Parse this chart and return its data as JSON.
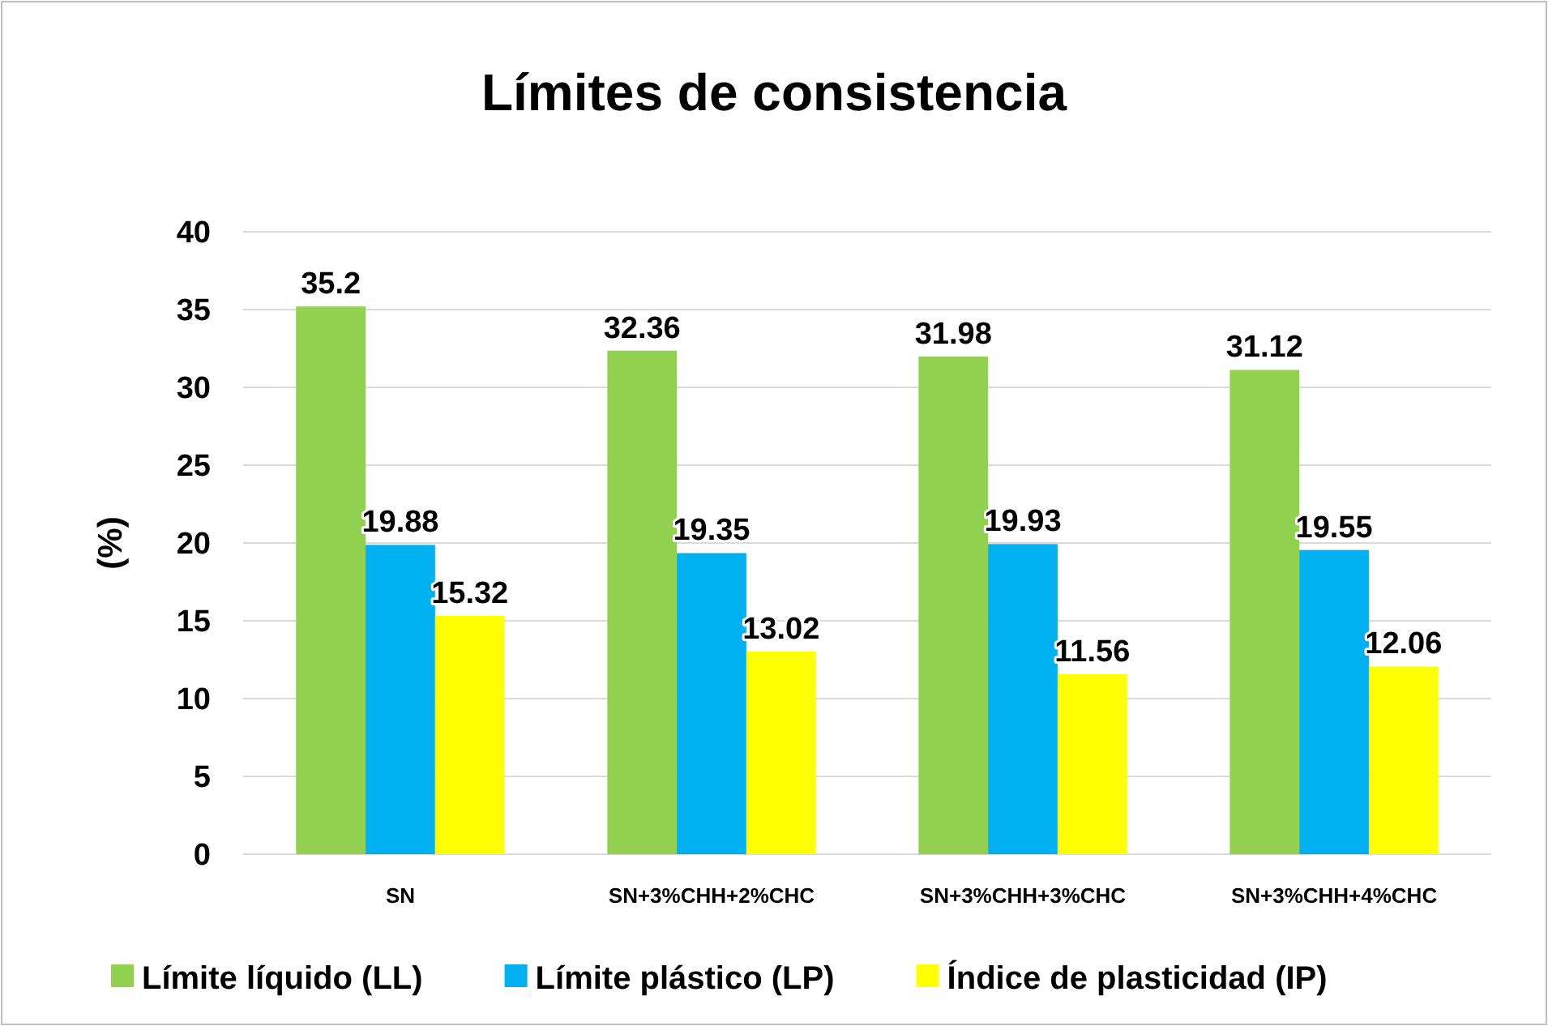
{
  "chart_data": {
    "type": "bar",
    "title": "Límites de consistencia",
    "ylabel": "(%)",
    "categories": [
      "SN",
      "SN+3%CHH+2%CHC",
      "SN+3%CHH+3%CHC",
      "SN+3%CHH+4%CHC"
    ],
    "series": [
      {
        "name": "Límite líquido (LL)",
        "color": "#92d050",
        "values": [
          35.2,
          32.36,
          31.98,
          31.12
        ]
      },
      {
        "name": "Límite plástico (LP)",
        "color": "#00b0f0",
        "values": [
          19.88,
          19.35,
          19.93,
          19.55
        ]
      },
      {
        "name": "Índice de plasticidad (IP)",
        "color": "#ffff00",
        "values": [
          15.32,
          13.02,
          11.56,
          12.06
        ]
      }
    ],
    "ylim": [
      0,
      40
    ],
    "yticks": [
      0,
      5,
      10,
      15,
      20,
      25,
      30,
      35,
      40
    ],
    "grid": "y",
    "legend": "bottom",
    "data_labels": true
  }
}
